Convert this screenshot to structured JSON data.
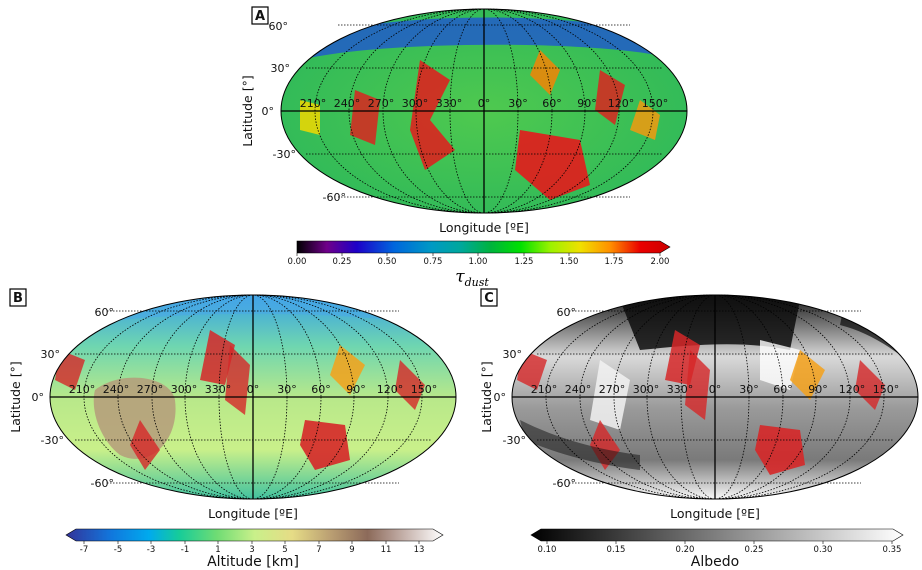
{
  "panels": [
    {
      "id": "A",
      "label": "A",
      "xlabel": "Longitude [ºE]",
      "ylabel": "Latitude [°]",
      "lat_labels": [
        "60°",
        "30°",
        "0°",
        "-30°",
        "-60°"
      ],
      "lon_labels": [
        "210°",
        "240°",
        "270°",
        "300°",
        "330°",
        "0°",
        "30°",
        "60°",
        "90°",
        "120°",
        "150°"
      ],
      "colorbar": {
        "title": "τdust",
        "title_main": "τ",
        "title_sub": "dust",
        "ticks": [
          "0.00",
          "0.25",
          "0.50",
          "0.75",
          "1.00",
          "1.25",
          "1.50",
          "1.75",
          "2.00"
        ],
        "colormap": "nipy_spectral",
        "range": [
          0,
          2
        ]
      }
    },
    {
      "id": "B",
      "label": "B",
      "xlabel": "Longitude [ºE]",
      "ylabel": "Latitude [°]",
      "lat_labels": [
        "60°",
        "30°",
        "0°",
        "-30°",
        "-60°"
      ],
      "lon_labels": [
        "210°",
        "240°",
        "270°",
        "300°",
        "330°",
        "0°",
        "30°",
        "60°",
        "90°",
        "120°",
        "150°"
      ],
      "colorbar": {
        "title": "Altitude [km]",
        "ticks": [
          "-7",
          "-5",
          "-3",
          "-1",
          "1",
          "3",
          "5",
          "7",
          "9",
          "11",
          "13"
        ],
        "colormap": "terrain",
        "range": [
          -8,
          14
        ]
      }
    },
    {
      "id": "C",
      "label": "C",
      "xlabel": "Longitude [ºE]",
      "ylabel": "Latitude [°]",
      "lat_labels": [
        "60°",
        "30°",
        "0°",
        "-30°",
        "-60°"
      ],
      "lon_labels": [
        "210°",
        "240°",
        "270°",
        "300°",
        "330°",
        "0°",
        "30°",
        "60°",
        "90°",
        "120°",
        "150°"
      ],
      "colorbar": {
        "title": "Albedo",
        "ticks": [
          "0.10",
          "0.15",
          "0.20",
          "0.25",
          "0.30",
          "0.35"
        ],
        "colormap": "gray",
        "range": [
          0.1,
          0.35
        ]
      }
    }
  ],
  "colors": {
    "grid": "#000000",
    "overlay_red": "#d62728",
    "overlay_orange": "#f5a11a"
  }
}
